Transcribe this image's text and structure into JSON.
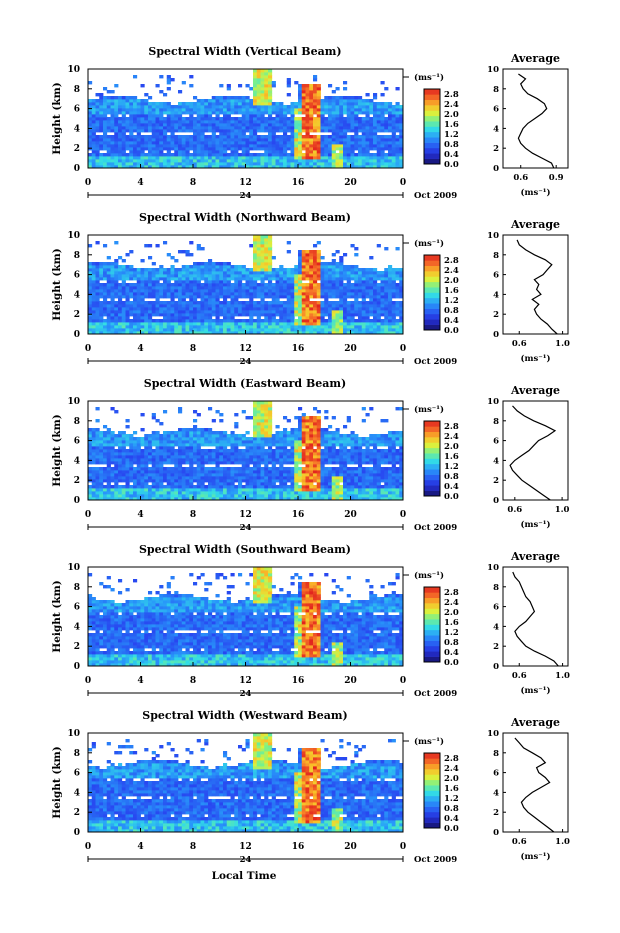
{
  "shared": {
    "xlabel": "Local Time",
    "ylabel": "Height (km)",
    "x_ticks": [
      "0",
      "4",
      "8",
      "12",
      "16",
      "20",
      "0"
    ],
    "day_marker": "24",
    "date_label": "Oct 2009",
    "colorbar_unit": "(ms⁻¹)",
    "colorbar_ticks": [
      "2.8",
      "2.4",
      "2.0",
      "1.6",
      "1.2",
      "0.8",
      "0.4",
      "0.0"
    ],
    "colorbar_range": [
      0.0,
      3.0
    ],
    "y_ticks": [
      "0",
      "2",
      "4",
      "6",
      "8",
      "10"
    ],
    "ylim": [
      0,
      10
    ],
    "avg_title": "Average",
    "avg_xlabel": "(ms⁻¹)"
  },
  "chart_data": [
    {
      "type": "heatmap",
      "title": "Spectral Width (Vertical Beam)",
      "avg_ticks": [
        "0.6",
        "0.9"
      ],
      "avg_xlim": [
        0.45,
        1.0
      ],
      "avg_profile": {
        "height_km": [
          0,
          0.5,
          1,
          1.5,
          2,
          2.5,
          3,
          3.5,
          4,
          4.5,
          5,
          5.5,
          6,
          6.5,
          7,
          7.5,
          8,
          8.5,
          9,
          9.5
        ],
        "width": [
          0.88,
          0.86,
          0.78,
          0.7,
          0.64,
          0.6,
          0.58,
          0.6,
          0.62,
          0.66,
          0.72,
          0.78,
          0.82,
          0.8,
          0.74,
          0.66,
          0.62,
          0.6,
          0.64,
          0.58
        ]
      }
    },
    {
      "type": "heatmap",
      "title": "Spectral Width (Northward Beam)",
      "avg_ticks": [
        "0.6",
        "1.0"
      ],
      "avg_xlim": [
        0.45,
        1.05
      ],
      "avg_profile": {
        "height_km": [
          0,
          0.5,
          1,
          1.5,
          2,
          2.5,
          3,
          3.5,
          4,
          4.5,
          5,
          5.5,
          6,
          6.5,
          7,
          7.5,
          8,
          8.5,
          9,
          9.5
        ],
        "width": [
          0.95,
          0.9,
          0.86,
          0.8,
          0.76,
          0.74,
          0.78,
          0.72,
          0.8,
          0.76,
          0.78,
          0.74,
          0.82,
          0.86,
          0.9,
          0.84,
          0.74,
          0.66,
          0.6,
          0.58
        ]
      }
    },
    {
      "type": "heatmap",
      "title": "Spectral Width (Eastward Beam)",
      "avg_ticks": [
        "0.6",
        "1.0"
      ],
      "avg_xlim": [
        0.5,
        1.05
      ],
      "avg_profile": {
        "height_km": [
          0,
          0.5,
          1,
          1.5,
          2,
          2.5,
          3,
          3.5,
          4,
          4.5,
          5,
          5.5,
          6,
          6.5,
          7,
          7.5,
          8,
          8.5,
          9,
          9.5
        ],
        "width": [
          0.9,
          0.84,
          0.78,
          0.72,
          0.66,
          0.62,
          0.58,
          0.56,
          0.6,
          0.66,
          0.72,
          0.76,
          0.8,
          0.88,
          0.94,
          0.86,
          0.76,
          0.68,
          0.62,
          0.58
        ]
      }
    },
    {
      "type": "heatmap",
      "title": "Spectral Width (Southward Beam)",
      "avg_ticks": [
        "0.6",
        "1.0"
      ],
      "avg_xlim": [
        0.45,
        1.05
      ],
      "avg_profile": {
        "height_km": [
          0,
          0.5,
          1,
          1.5,
          2,
          2.5,
          3,
          3.5,
          4,
          4.5,
          5,
          5.5,
          6,
          6.5,
          7,
          7.5,
          8,
          8.5,
          9,
          9.5
        ],
        "width": [
          0.96,
          0.92,
          0.84,
          0.74,
          0.66,
          0.62,
          0.58,
          0.56,
          0.6,
          0.66,
          0.7,
          0.74,
          0.72,
          0.7,
          0.66,
          0.64,
          0.62,
          0.6,
          0.56,
          0.54
        ]
      }
    },
    {
      "type": "heatmap",
      "title": "Spectral Width (Westward Beam)",
      "avg_ticks": [
        "0.6",
        "1.0"
      ],
      "avg_xlim": [
        0.45,
        1.05
      ],
      "avg_profile": {
        "height_km": [
          0,
          0.5,
          1,
          1.5,
          2,
          2.5,
          3,
          3.5,
          4,
          4.5,
          5,
          5.5,
          6,
          6.5,
          7,
          7.5,
          8,
          8.5,
          9,
          9.5
        ],
        "width": [
          0.92,
          0.86,
          0.8,
          0.74,
          0.68,
          0.64,
          0.62,
          0.66,
          0.72,
          0.8,
          0.88,
          0.84,
          0.78,
          0.76,
          0.84,
          0.8,
          0.72,
          0.64,
          0.6,
          0.56
        ]
      }
    }
  ]
}
